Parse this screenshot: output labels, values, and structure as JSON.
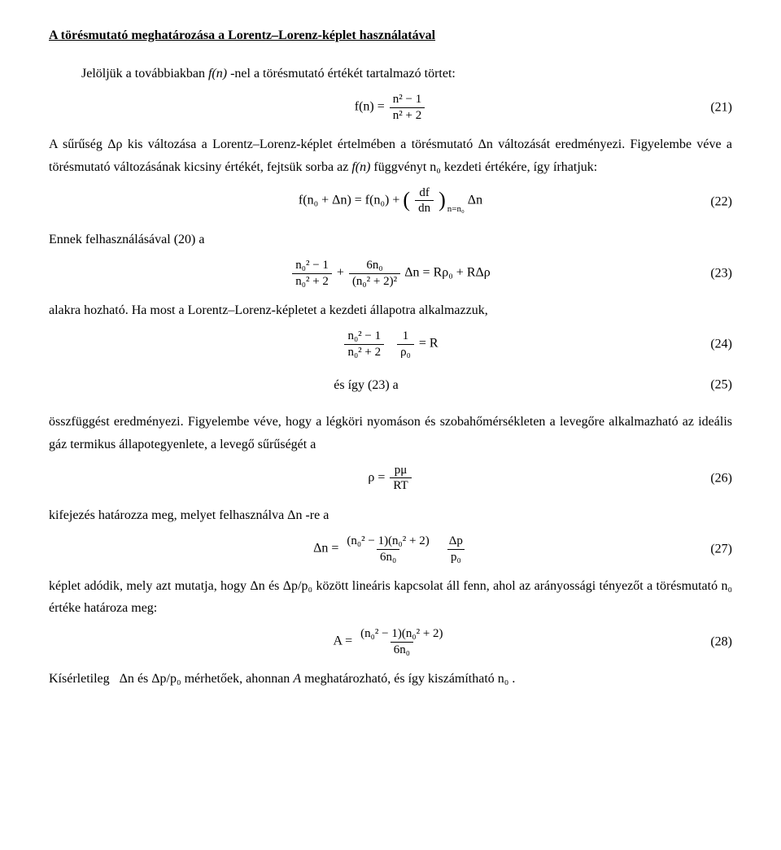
{
  "title": "A törésmutató meghatározása a Lorentz–Lorenz-képlet használatával",
  "p1_a": "Jelöljük a továbbiakban ",
  "p1_f": "f(n)",
  "p1_b": "-nel a törésmutató értékét tartalmazó törtet:",
  "p2_a": "A sűrűség ",
  "p2_rho": "Δρ",
  "p2_b": " kis változása a Lorentz–Lorenz-képlet értelmében a törésmutató ",
  "p2_dn": "Δn",
  "p2_c": " változását eredményezi. Figyelembe véve a törésmutató változásának kicsiny értékét, fejtsük sorba az ",
  "p2_f": "f(n)",
  "p2_d": " függvényt ",
  "p2_n0": "n₀",
  "p2_e": " kezdeti értékére, így írhatjuk:",
  "p3": "Ennek felhasználásával (20) a",
  "p4": "alakra hozható. Ha most a Lorentz–Lorenz-képletet a kezdeti állapotra alkalmazzuk,",
  "p5_label": "és így (23) a",
  "p6": "összfüggést eredményezi. Figyelembe véve, hogy a légköri nyomáson és szobahőmérsékleten a levegőre alkalmazható az ideális gáz termikus állapotegyenlete, a levegő sűrűségét a",
  "p7_a": "kifejezés határozza meg, melyet felhasználva ",
  "p7_dn": "Δn",
  "p7_b": "-re a",
  "p8_a": "képlet adódik, mely azt mutatja, hogy ",
  "p8_dn": "Δn",
  "p8_b": " és ",
  "p8_r": "Δp/p₀",
  "p8_c": " között lineáris kapcsolat áll fenn, ahol az arányossági tényezőt a törésmutató ",
  "p8_n0": "n₀",
  "p8_d": " értéke határoza meg:",
  "p9_a": "Kísérletileg   ",
  "p9_dn": "Δn",
  "p9_b": " és ",
  "p9_r": "Δp/p₀",
  "p9_c": " mérhetőek, ahonnan ",
  "p9_A": "A",
  "p9_d": " meghatározható, és így kiszámítható ",
  "p9_n0": "n₀",
  "p9_e": ".",
  "eqnum": {
    "e21": "(21)",
    "e22": "(22)",
    "e23": "(23)",
    "e24": "(24)",
    "e25": "(25)",
    "e26": "(26)",
    "e27": "(27)",
    "e28": "(28)"
  },
  "eq21": {
    "lhs": "f(n) =",
    "num": "n² − 1",
    "den": "n² + 2"
  },
  "eq22": {
    "lhs": "f(n₀ + Δn) = f(n₀) + ",
    "df_num": "df",
    "df_den": "dn",
    "sub": "n=n₀",
    "tail": " Δn"
  },
  "eq23": {
    "f1_num": "n₀² − 1",
    "f1_den": "n₀² + 2",
    "plus": " + ",
    "f2_num": "6n₀",
    "f2_den": "(n₀² + 2)²",
    "rhs": " Δn = Rρ₀ + RΔρ"
  },
  "eq24": {
    "f1_num": "n₀² − 1",
    "f1_den": "n₀² + 2",
    "f2_num": "1",
    "f2_den": "ρ₀",
    "rhs": " = R"
  },
  "eq26": {
    "lhs": "ρ = ",
    "num": "pμ",
    "den": "RT"
  },
  "eq27": {
    "lhs": "Δn = ",
    "num": "(n₀² − 1)(n₀² + 2)",
    "den": "6n₀",
    "f2_num": "Δp",
    "f2_den": "p₀"
  },
  "eq28": {
    "lhs": "A = ",
    "num": "(n₀² − 1)(n₀² + 2)",
    "den": "6n₀"
  },
  "colors": {
    "text": "#000000",
    "background": "#ffffff",
    "rule": "#000000"
  },
  "font": {
    "family": "Times New Roman",
    "body_pt": 16,
    "sup_pt": 11
  }
}
